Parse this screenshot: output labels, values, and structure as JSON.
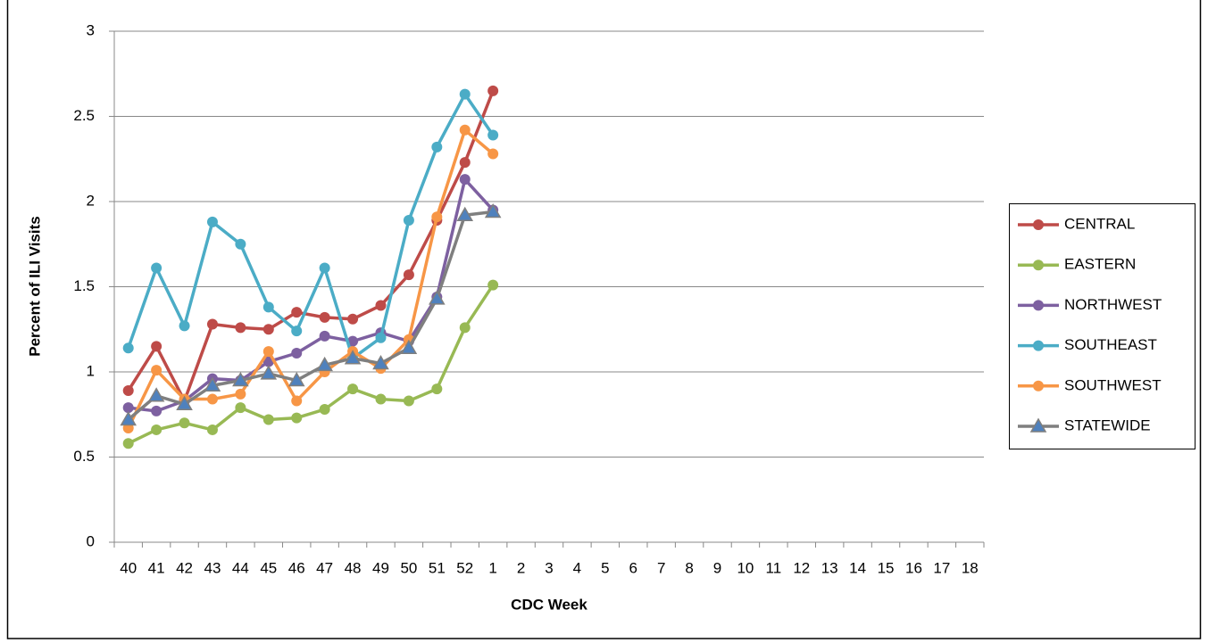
{
  "chart_data": {
    "type": "line",
    "x_label": "CDC Week",
    "y_label": "Percent of ILI Visits",
    "categories": [
      "40",
      "41",
      "42",
      "43",
      "44",
      "45",
      "46",
      "47",
      "48",
      "49",
      "50",
      "51",
      "52",
      "1",
      "2",
      "3",
      "4",
      "5",
      "6",
      "7",
      "8",
      "9",
      "10",
      "11",
      "12",
      "13",
      "14",
      "15",
      "16",
      "17",
      "18"
    ],
    "ylim": [
      0,
      3
    ],
    "yticks": [
      0,
      0.5,
      1,
      1.5,
      2,
      2.5,
      3
    ],
    "grid": true,
    "legend": "right",
    "series": [
      {
        "name": "CENTRAL",
        "color": "#be4b48",
        "marker": "circle",
        "values": [
          0.89,
          1.15,
          0.83,
          1.28,
          1.26,
          1.25,
          1.35,
          1.32,
          1.31,
          1.39,
          1.57,
          1.89,
          2.23,
          2.65,
          null,
          null,
          null,
          null,
          null,
          null,
          null,
          null,
          null,
          null,
          null,
          null,
          null,
          null,
          null,
          null,
          null
        ]
      },
      {
        "name": "EASTERN",
        "color": "#98b954",
        "marker": "circle",
        "values": [
          0.58,
          0.66,
          0.7,
          0.66,
          0.79,
          0.72,
          0.73,
          0.78,
          0.9,
          0.84,
          0.83,
          0.9,
          1.26,
          1.51,
          null,
          null,
          null,
          null,
          null,
          null,
          null,
          null,
          null,
          null,
          null,
          null,
          null,
          null,
          null,
          null,
          null
        ]
      },
      {
        "name": "NORTHWEST",
        "color": "#7d60a0",
        "marker": "circle",
        "values": [
          0.79,
          0.77,
          0.83,
          0.96,
          0.95,
          1.06,
          1.11,
          1.21,
          1.18,
          1.23,
          1.18,
          1.44,
          2.13,
          1.95,
          null,
          null,
          null,
          null,
          null,
          null,
          null,
          null,
          null,
          null,
          null,
          null,
          null,
          null,
          null,
          null,
          null
        ]
      },
      {
        "name": "SOUTHEAST",
        "color": "#4bacc6",
        "marker": "circle",
        "values": [
          1.14,
          1.61,
          1.27,
          1.88,
          1.75,
          1.38,
          1.24,
          1.61,
          1.08,
          1.2,
          1.89,
          2.32,
          2.63,
          2.39,
          null,
          null,
          null,
          null,
          null,
          null,
          null,
          null,
          null,
          null,
          null,
          null,
          null,
          null,
          null,
          null,
          null
        ]
      },
      {
        "name": "SOUTHWEST",
        "color": "#f79646",
        "marker": "circle",
        "values": [
          0.67,
          1.01,
          0.84,
          0.84,
          0.87,
          1.12,
          0.83,
          1.0,
          1.12,
          1.02,
          1.19,
          1.91,
          2.42,
          2.28,
          null,
          null,
          null,
          null,
          null,
          null,
          null,
          null,
          null,
          null,
          null,
          null,
          null,
          null,
          null,
          null,
          null
        ]
      },
      {
        "name": "STATEWIDE",
        "color": "#7f7f7f",
        "marker": "triangle",
        "marker_color": "#4f81bd",
        "values": [
          0.72,
          0.86,
          0.81,
          0.92,
          0.95,
          0.99,
          0.95,
          1.04,
          1.08,
          1.05,
          1.14,
          1.43,
          1.92,
          1.94,
          null,
          null,
          null,
          null,
          null,
          null,
          null,
          null,
          null,
          null,
          null,
          null,
          null,
          null,
          null,
          null,
          null
        ]
      }
    ]
  }
}
